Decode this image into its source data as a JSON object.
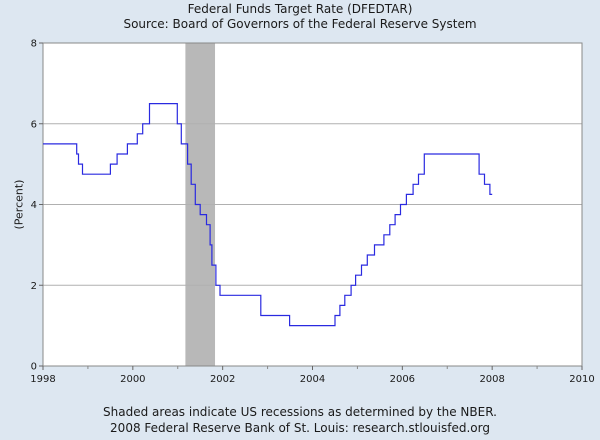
{
  "chart_data": {
    "type": "line",
    "title": "Federal Funds Target Rate (DFEDTAR)",
    "subtitle": "Source: Board of Governors of the Federal Reserve System",
    "xlabel": "",
    "ylabel": "(Percent)",
    "xlim": [
      1998,
      2010
    ],
    "ylim": [
      0,
      8
    ],
    "x_ticks": [
      "1998",
      "2000",
      "2002",
      "2004",
      "2006",
      "2008",
      "2010"
    ],
    "y_ticks": [
      "0",
      "2",
      "4",
      "6",
      "8"
    ],
    "grid": true,
    "line_color": "#2a2ae0",
    "recession_color": "#b8b8b8",
    "recessions": [
      [
        2001.17,
        2001.83
      ]
    ],
    "series": [
      {
        "name": "",
        "step": true,
        "points": [
          [
            1998.0,
            5.5
          ],
          [
            1998.75,
            5.25
          ],
          [
            1998.79,
            5.0
          ],
          [
            1998.88,
            4.75
          ],
          [
            1999.5,
            5.0
          ],
          [
            1999.65,
            5.25
          ],
          [
            1999.88,
            5.5
          ],
          [
            2000.1,
            5.75
          ],
          [
            2000.22,
            6.0
          ],
          [
            2000.37,
            6.5
          ],
          [
            2000.99,
            6.0
          ],
          [
            2001.08,
            5.5
          ],
          [
            2001.22,
            5.0
          ],
          [
            2001.3,
            4.5
          ],
          [
            2001.39,
            4.0
          ],
          [
            2001.5,
            3.75
          ],
          [
            2001.64,
            3.5
          ],
          [
            2001.72,
            3.0
          ],
          [
            2001.76,
            2.5
          ],
          [
            2001.85,
            2.0
          ],
          [
            2001.94,
            1.75
          ],
          [
            2002.85,
            1.25
          ],
          [
            2003.49,
            1.0
          ],
          [
            2004.5,
            1.25
          ],
          [
            2004.61,
            1.5
          ],
          [
            2004.72,
            1.75
          ],
          [
            2004.86,
            2.0
          ],
          [
            2004.96,
            2.25
          ],
          [
            2005.09,
            2.5
          ],
          [
            2005.22,
            2.75
          ],
          [
            2005.38,
            3.0
          ],
          [
            2005.59,
            3.25
          ],
          [
            2005.72,
            3.5
          ],
          [
            2005.84,
            3.75
          ],
          [
            2005.96,
            4.0
          ],
          [
            2006.09,
            4.25
          ],
          [
            2006.24,
            4.5
          ],
          [
            2006.36,
            4.75
          ],
          [
            2006.49,
            5.25
          ],
          [
            2007.71,
            4.75
          ],
          [
            2007.83,
            4.5
          ],
          [
            2007.95,
            4.25
          ],
          [
            2008.0,
            4.25
          ]
        ]
      }
    ]
  },
  "footer": {
    "note": "Shaded areas indicate US recessions as determined by the NBER.",
    "credit": "2008 Federal Reserve Bank of St. Louis: research.stlouisfed.org"
  }
}
